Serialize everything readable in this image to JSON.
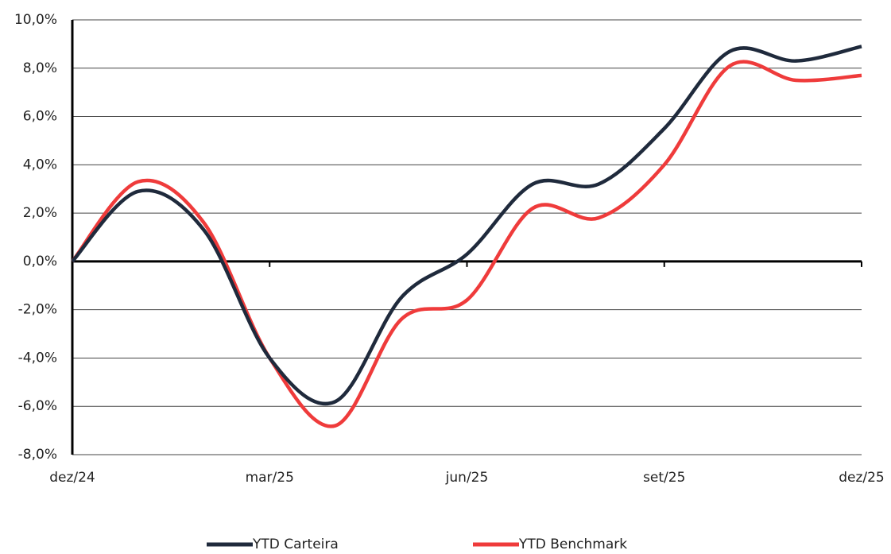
{
  "chart_data": {
    "type": "line",
    "categories": [
      "dez/24",
      null,
      null,
      "mar/25",
      null,
      null,
      "jun/25",
      null,
      null,
      "set/25",
      null,
      null,
      "dez/25"
    ],
    "series": [
      {
        "name": "YTD Carteira",
        "color": "#1f2a3c",
        "values": [
          0,
          2.9,
          1.3,
          -4.0,
          -5.8,
          -1.5,
          0.3,
          3.2,
          3.2,
          5.5,
          8.7,
          8.3,
          8.9
        ]
      },
      {
        "name": "YTD Benchmark",
        "color": "#ef3b3b",
        "values": [
          0,
          3.3,
          1.6,
          -4.0,
          -6.8,
          -2.4,
          -1.6,
          2.2,
          1.8,
          4.0,
          8.1,
          7.5,
          7.7
        ]
      }
    ],
    "ylim": [
      -8,
      10
    ],
    "yticks": [
      {
        "value": -8,
        "label": "-8,0%"
      },
      {
        "value": -6,
        "label": "-6,0%"
      },
      {
        "value": -4,
        "label": "-4,0%"
      },
      {
        "value": -2,
        "label": "-2,0%"
      },
      {
        "value": 0,
        "label": "0,0%"
      },
      {
        "value": 2,
        "label": "2,0%"
      },
      {
        "value": 4,
        "label": "4,0%"
      },
      {
        "value": 6,
        "label": "6,0%"
      },
      {
        "value": 8,
        "label": "8,0%"
      },
      {
        "value": 10,
        "label": "10,0%"
      }
    ],
    "grid": true,
    "legend": "bottom"
  }
}
